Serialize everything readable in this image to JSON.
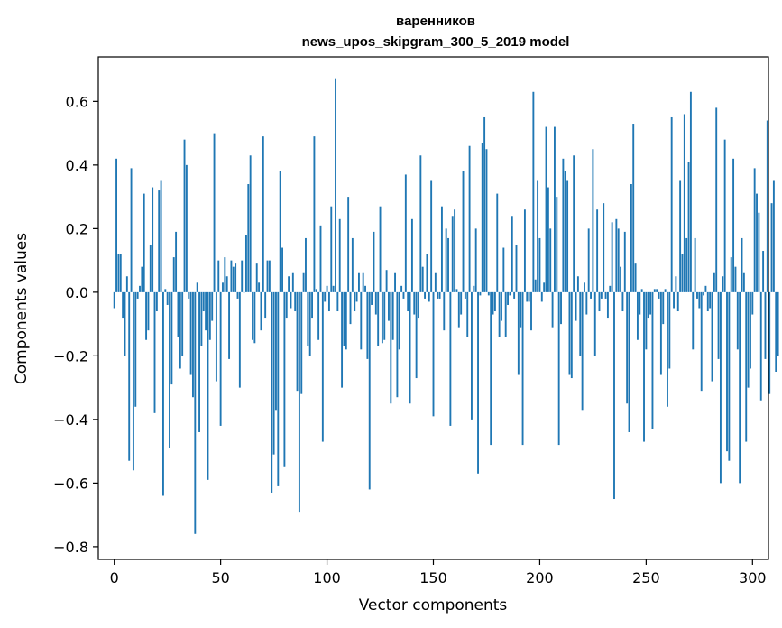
{
  "chart_data": {
    "type": "bar",
    "title": "варенников",
    "subtitle": "news_upos_skipgram_300_5_2019 model",
    "xlabel": "Vector components",
    "ylabel": "Components values",
    "xlim": [
      -7.5,
      307.5
    ],
    "ylim": [
      -0.84,
      0.74
    ],
    "xticks": [
      0,
      50,
      100,
      150,
      200,
      250,
      300
    ],
    "yticks": [
      -0.8,
      -0.6,
      -0.4,
      -0.2,
      0.0,
      0.2,
      0.4,
      0.6
    ],
    "ytick_labels": [
      "−0.8",
      "−0.6",
      "−0.4",
      "−0.2",
      "0.0",
      "0.2",
      "0.4",
      "0.6"
    ],
    "bar_color": "#1f77b4",
    "grid": false,
    "values": [
      -0.05,
      0.42,
      0.12,
      0.12,
      -0.08,
      -0.2,
      0.05,
      -0.53,
      0.39,
      -0.56,
      -0.36,
      -0.02,
      0.02,
      0.08,
      0.31,
      -0.15,
      -0.12,
      0.15,
      0.33,
      -0.38,
      -0.06,
      0.32,
      0.35,
      -0.64,
      0.01,
      -0.04,
      -0.49,
      -0.29,
      0.11,
      0.19,
      -0.14,
      -0.24,
      -0.2,
      0.48,
      0.4,
      -0.02,
      -0.26,
      -0.33,
      -0.76,
      0.03,
      -0.44,
      -0.17,
      -0.06,
      -0.12,
      -0.59,
      -0.15,
      -0.09,
      0.5,
      -0.28,
      0.1,
      -0.42,
      0.03,
      0.11,
      0.05,
      -0.21,
      0.1,
      0.08,
      0.09,
      -0.02,
      -0.3,
      0.1,
      0.0,
      0.18,
      0.34,
      0.43,
      -0.15,
      -0.16,
      0.09,
      0.03,
      -0.12,
      0.49,
      -0.08,
      0.1,
      0.1,
      -0.63,
      -0.51,
      -0.37,
      -0.61,
      0.38,
      0.14,
      -0.55,
      -0.08,
      0.05,
      -0.05,
      0.06,
      -0.06,
      -0.31,
      -0.69,
      -0.32,
      0.06,
      0.17,
      -0.17,
      -0.2,
      -0.08,
      0.49,
      0.01,
      -0.15,
      0.21,
      -0.47,
      -0.03,
      0.02,
      -0.06,
      0.27,
      0.02,
      0.67,
      -0.06,
      0.23,
      -0.3,
      -0.17,
      -0.18,
      0.3,
      -0.1,
      0.17,
      -0.06,
      -0.03,
      0.06,
      -0.18,
      0.06,
      0.02,
      -0.21,
      -0.62,
      -0.04,
      0.19,
      -0.07,
      -0.17,
      0.27,
      -0.16,
      -0.15,
      0.07,
      -0.09,
      -0.35,
      -0.15,
      0.06,
      -0.33,
      -0.18,
      0.02,
      -0.02,
      0.37,
      -0.06,
      -0.35,
      0.23,
      -0.07,
      -0.27,
      -0.08,
      0.43,
      0.08,
      -0.02,
      0.12,
      -0.03,
      0.35,
      -0.39,
      0.06,
      -0.02,
      -0.02,
      0.27,
      -0.12,
      0.2,
      0.17,
      -0.42,
      0.24,
      0.26,
      0.01,
      -0.11,
      -0.07,
      0.38,
      -0.02,
      -0.14,
      0.46,
      -0.4,
      0.02,
      0.2,
      -0.57,
      -0.01,
      0.47,
      0.55,
      0.45,
      -0.01,
      -0.48,
      -0.07,
      -0.06,
      0.31,
      -0.14,
      -0.09,
      0.14,
      -0.14,
      -0.04,
      -0.01,
      0.24,
      -0.02,
      0.15,
      -0.26,
      -0.11,
      -0.48,
      0.26,
      -0.03,
      -0.03,
      -0.12,
      0.63,
      0.04,
      0.35,
      0.17,
      -0.03,
      0.03,
      0.52,
      0.33,
      0.2,
      -0.11,
      0.52,
      0.3,
      -0.48,
      -0.1,
      0.42,
      0.38,
      0.35,
      -0.26,
      -0.27,
      0.43,
      -0.09,
      0.05,
      -0.2,
      -0.37,
      0.03,
      -0.07,
      0.2,
      -0.02,
      0.45,
      -0.2,
      0.26,
      -0.06,
      -0.02,
      0.28,
      -0.02,
      -0.08,
      0.02,
      0.22,
      -0.65,
      0.23,
      0.2,
      0.08,
      -0.06,
      0.19,
      -0.35,
      -0.44,
      0.34,
      0.53,
      0.09,
      -0.15,
      -0.07,
      0.01,
      -0.47,
      -0.18,
      -0.08,
      -0.07,
      -0.43,
      0.01,
      0.01,
      -0.02,
      -0.26,
      -0.1,
      0.01,
      -0.36,
      -0.24,
      0.55,
      -0.05,
      0.05,
      -0.06,
      0.35,
      0.12,
      0.56,
      0.17,
      0.41,
      0.63,
      -0.18,
      0.17,
      -0.02,
      -0.05,
      -0.31,
      -0.01,
      0.02,
      -0.06,
      -0.05,
      -0.28,
      0.06,
      0.58,
      -0.21,
      -0.6,
      0.05,
      0.48,
      -0.5,
      -0.53,
      0.11,
      0.42,
      0.08,
      -0.18,
      -0.6,
      0.17,
      0.06,
      -0.47,
      -0.3,
      -0.24,
      -0.07,
      0.39,
      0.31,
      0.25,
      -0.34,
      0.13,
      -0.21,
      0.54,
      -0.32,
      0.28,
      0.35,
      -0.25,
      -0.2
    ]
  }
}
